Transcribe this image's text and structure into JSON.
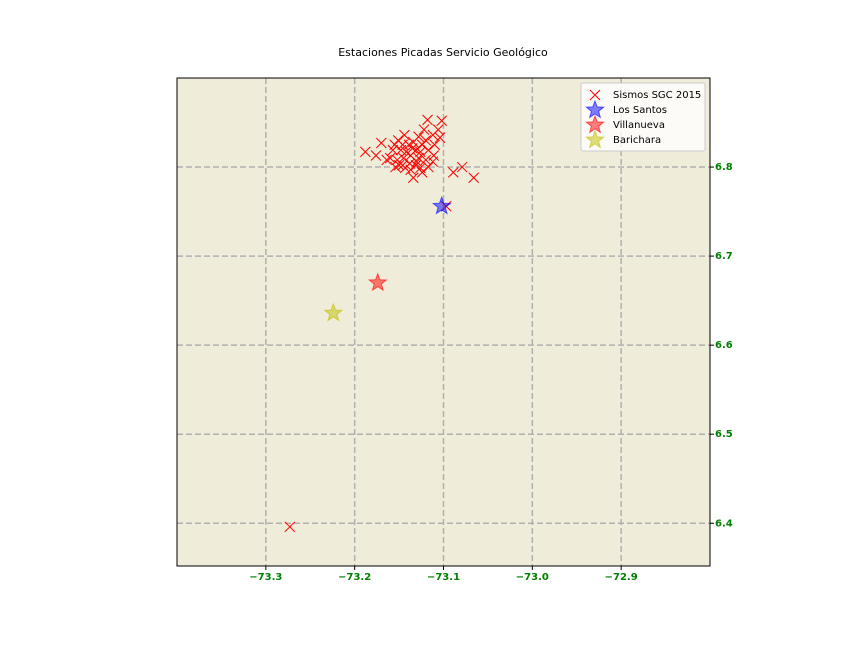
{
  "chart_data": {
    "type": "scatter",
    "title": "Estaciones Picadas Servicio Geológico",
    "background": "#efecd9",
    "grid": true,
    "legend": "upper right",
    "xlim": [
      -73.4,
      -72.8
    ],
    "ylim": [
      6.352,
      6.9
    ],
    "xticks": [
      {
        "value": -73.3,
        "label": "−73.3"
      },
      {
        "value": -73.2,
        "label": "−73.2"
      },
      {
        "value": -73.1,
        "label": "−73.1"
      },
      {
        "value": -73.0,
        "label": "−73.0"
      },
      {
        "value": -72.9,
        "label": "−72.9"
      }
    ],
    "yticks": [
      6.4,
      6.5,
      6.6,
      6.7,
      6.8
    ],
    "series": [
      {
        "name": "Sismos SGC 2015",
        "color": "#ff0000",
        "marker": "x",
        "x": [
          -73.273,
          -73.097,
          -73.079,
          -73.066,
          -73.089,
          -73.188,
          -73.176,
          -73.17,
          -73.118,
          -73.102,
          -73.106,
          -73.104,
          -73.112,
          -73.122,
          -73.128,
          -73.144,
          -73.151,
          -73.155,
          -73.157,
          -73.148,
          -73.139,
          -73.131,
          -73.124,
          -73.117,
          -73.111,
          -73.112,
          -73.12,
          -73.128,
          -73.137,
          -73.145,
          -73.152,
          -73.16,
          -73.164,
          -73.154,
          -73.146,
          -73.138,
          -73.131,
          -73.126,
          -73.117,
          -73.137,
          -73.143,
          -73.15,
          -73.134,
          -73.124,
          -73.13,
          -73.135,
          -73.142,
          -73.126,
          -73.12,
          -73.134,
          -73.11,
          -73.146
        ],
        "values": [
          6.396,
          6.756,
          6.8,
          6.788,
          6.794,
          6.817,
          6.813,
          6.827,
          6.853,
          6.852,
          6.842,
          6.833,
          6.836,
          6.842,
          6.834,
          6.836,
          6.83,
          6.825,
          6.819,
          6.819,
          6.825,
          6.819,
          6.825,
          6.819,
          6.813,
          6.806,
          6.808,
          6.81,
          6.813,
          6.81,
          6.808,
          6.81,
          6.808,
          6.8,
          6.802,
          6.804,
          6.802,
          6.799,
          6.8,
          6.797,
          6.799,
          6.802,
          6.788,
          6.794,
          6.806,
          6.821,
          6.817,
          6.817,
          6.83,
          6.828,
          6.825,
          6.825
        ]
      },
      {
        "name": "Los Santos",
        "color": "#0000ff",
        "marker": "star",
        "x": [
          -73.102
        ],
        "values": [
          6.756
        ]
      },
      {
        "name": "Villanueva",
        "color": "#ff0000",
        "marker": "star",
        "x": [
          -73.174
        ],
        "values": [
          6.67
        ]
      },
      {
        "name": "Barichara",
        "color": "#bfbf00",
        "marker": "star",
        "x": [
          -73.224
        ],
        "values": [
          6.636
        ]
      }
    ]
  }
}
